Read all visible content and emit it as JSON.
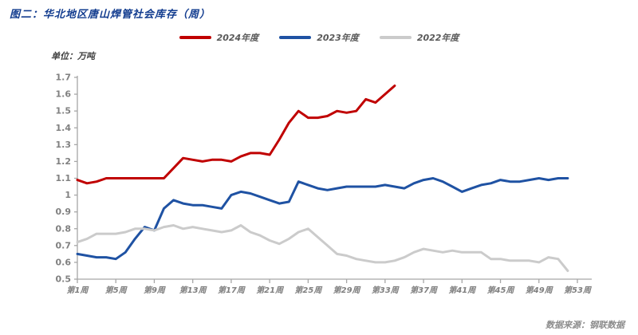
{
  "title": "图二：华北地区唐山焊管社会库存（周）",
  "unit_label": "单位：万吨",
  "source": "数据来源：钢联数据",
  "colors": {
    "title_text": "#123C8F",
    "axis_line": "#A6A6A6",
    "axis_text": "#808080",
    "legend_text": "#595959",
    "series_2024": "#C00000",
    "series_2023": "#1F52A3",
    "series_2022": "#CBCBCB",
    "background": "#FFFFFF"
  },
  "chart_data": {
    "type": "line",
    "title": "华北地区唐山焊管社会库存（周）",
    "ylabel": "万吨",
    "xlabel": "",
    "ylim": [
      0.5,
      1.7
    ],
    "y_tick_step": 0.1,
    "x_weeks": 53,
    "x_tick_every": 4,
    "x_tick_labels": [
      "第1周",
      "第5周",
      "第9周",
      "第13周",
      "第17周",
      "第21周",
      "第25周",
      "第29周",
      "第33周",
      "第37周",
      "第41周",
      "第45周",
      "第49周",
      "第53周"
    ],
    "grid": false,
    "legend_position": "top-center",
    "series": [
      {
        "name": "2024年度",
        "color": "#C00000",
        "start_week": 1,
        "values": [
          1.09,
          1.07,
          1.08,
          1.1,
          1.1,
          1.1,
          1.1,
          1.1,
          1.1,
          1.1,
          1.16,
          1.22,
          1.21,
          1.2,
          1.21,
          1.21,
          1.2,
          1.23,
          1.25,
          1.25,
          1.24,
          1.33,
          1.43,
          1.5,
          1.46,
          1.46,
          1.47,
          1.5,
          1.49,
          1.5,
          1.57,
          1.55,
          1.6,
          1.65
        ]
      },
      {
        "name": "2023年度",
        "color": "#1F52A3",
        "start_week": 1,
        "values": [
          0.65,
          0.64,
          0.63,
          0.63,
          0.62,
          0.66,
          0.74,
          0.81,
          0.79,
          0.92,
          0.97,
          0.95,
          0.94,
          0.94,
          0.93,
          0.92,
          1.0,
          1.02,
          1.01,
          0.99,
          0.97,
          0.95,
          0.96,
          1.08,
          1.06,
          1.04,
          1.03,
          1.04,
          1.05,
          1.05,
          1.05,
          1.05,
          1.06,
          1.05,
          1.04,
          1.07,
          1.09,
          1.1,
          1.08,
          1.05,
          1.02,
          1.04,
          1.06,
          1.07,
          1.09,
          1.08,
          1.08,
          1.09,
          1.1,
          1.09,
          1.1,
          1.1
        ]
      },
      {
        "name": "2022年度",
        "color": "#CBCBCB",
        "start_week": 1,
        "values": [
          0.72,
          0.74,
          0.77,
          0.77,
          0.77,
          0.78,
          0.8,
          0.8,
          0.79,
          0.81,
          0.82,
          0.8,
          0.81,
          0.8,
          0.79,
          0.78,
          0.79,
          0.82,
          0.78,
          0.76,
          0.73,
          0.71,
          0.74,
          0.78,
          0.8,
          0.75,
          0.7,
          0.65,
          0.64,
          0.62,
          0.61,
          0.6,
          0.6,
          0.61,
          0.63,
          0.66,
          0.68,
          0.67,
          0.66,
          0.67,
          0.66,
          0.66,
          0.66,
          0.62,
          0.62,
          0.61,
          0.61,
          0.61,
          0.6,
          0.63,
          0.62,
          0.55
        ]
      }
    ]
  }
}
